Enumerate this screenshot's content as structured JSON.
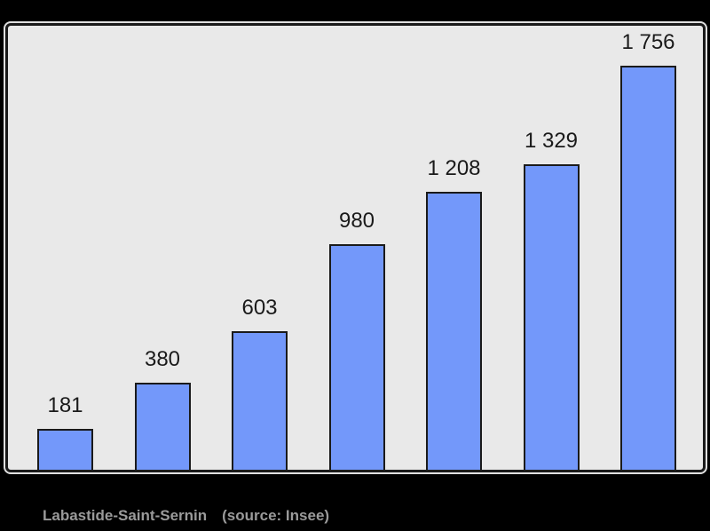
{
  "chart_data": {
    "type": "bar",
    "title": "",
    "values": [
      181,
      380,
      603,
      980,
      1208,
      1329,
      1756
    ],
    "value_labels": [
      "181",
      "380",
      "603",
      "980",
      "1 208",
      "1 329",
      "1 756"
    ],
    "data_labels_position": "above-bars",
    "ylim": [
      0,
      1925
    ],
    "grid": false,
    "legend": false,
    "axes_visible": false,
    "bar_color": "#7398fa",
    "bar_border_color": "#1a1a1a",
    "plot_background": "#e9e9e9"
  },
  "caption": {
    "commune": "Labastide-Saint-Sernin",
    "source": "(source: Insee)"
  },
  "colors": {
    "page_background": "#000000",
    "frame_border": "#1a1a1a",
    "frame_highlight": "#f8f8f8",
    "value_label": "#1a1a1a",
    "caption_text": "#9a9a9a"
  }
}
